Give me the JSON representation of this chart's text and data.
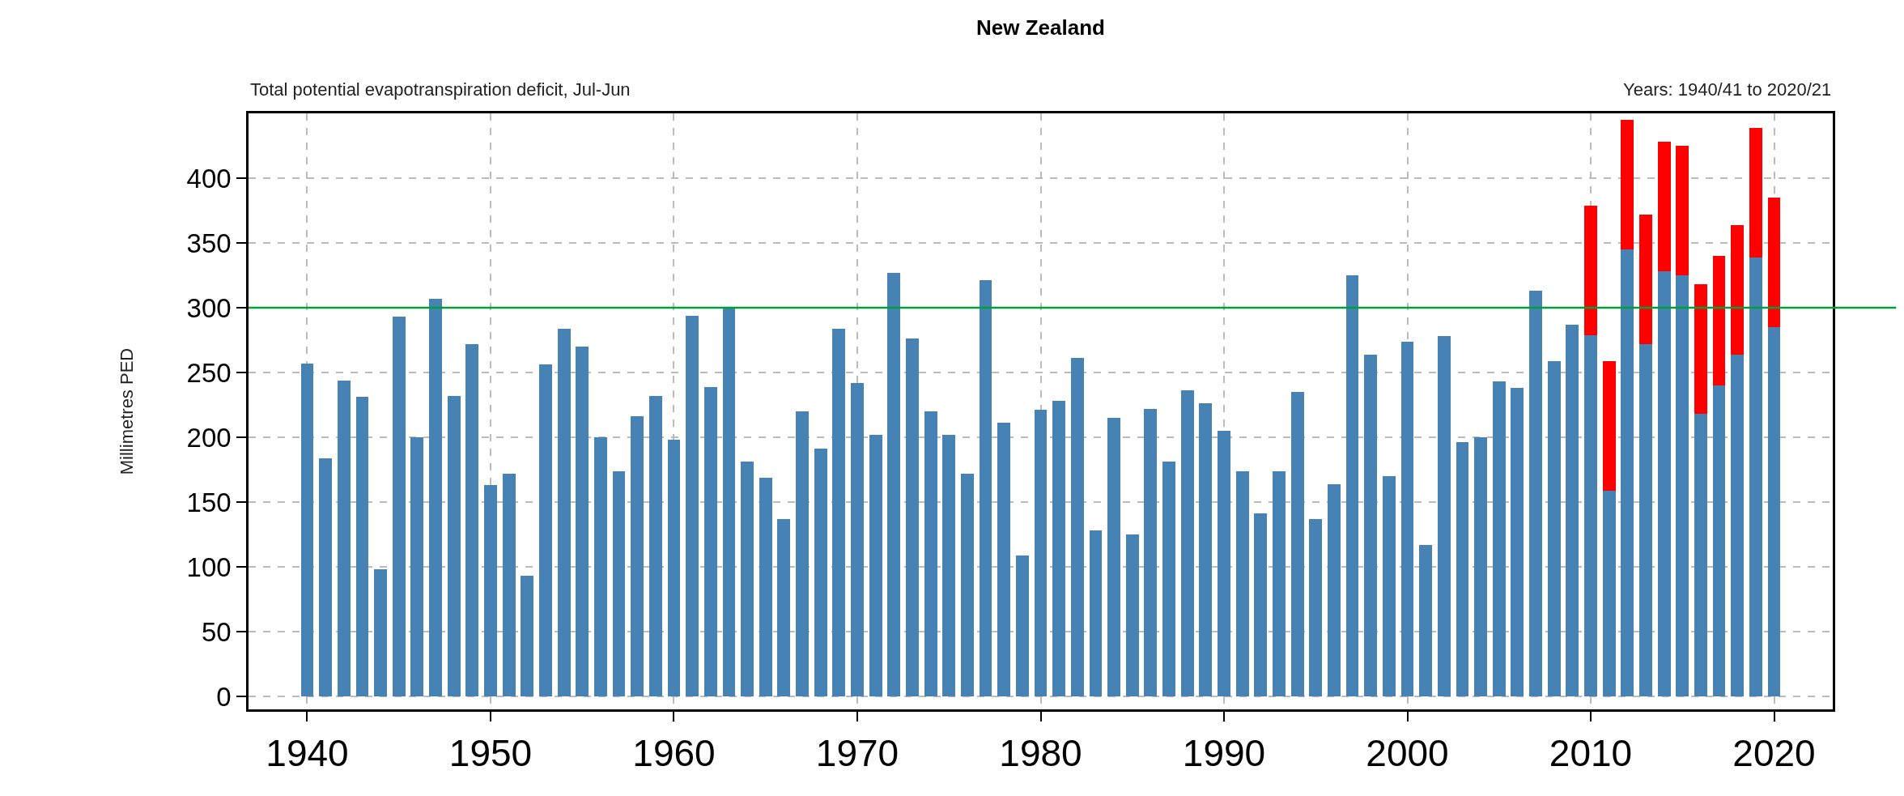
{
  "chart_data": {
    "type": "bar",
    "title": "New Zealand",
    "subtitle": "Total potential evapotranspiration deficit, Jul-Jun",
    "annotations": [
      "Years: 1940/41 to 2020/21"
    ],
    "ylabel": "Millimetres PED",
    "x": [
      1940,
      1941,
      1942,
      1943,
      1944,
      1945,
      1946,
      1947,
      1948,
      1949,
      1950,
      1951,
      1952,
      1953,
      1954,
      1955,
      1956,
      1957,
      1958,
      1959,
      1960,
      1961,
      1962,
      1963,
      1964,
      1965,
      1966,
      1967,
      1968,
      1969,
      1970,
      1971,
      1972,
      1973,
      1974,
      1975,
      1976,
      1977,
      1978,
      1979,
      1980,
      1981,
      1982,
      1983,
      1984,
      1985,
      1986,
      1987,
      1988,
      1989,
      1990,
      1991,
      1992,
      1993,
      1994,
      1995,
      1996,
      1997,
      1998,
      1999,
      2000,
      2001,
      2002,
      2003,
      2004,
      2005,
      2006,
      2007,
      2008,
      2009,
      2010,
      2011,
      2012,
      2013,
      2014,
      2015,
      2016,
      2017,
      2018,
      2019,
      2020
    ],
    "series": [
      {
        "color": "#4682b4",
        "values": [
          257,
          184,
          244,
          231,
          98,
          293,
          200,
          307,
          232,
          272,
          163,
          172,
          93,
          256,
          284,
          270,
          200,
          174,
          216,
          232,
          198,
          294,
          239,
          300,
          181,
          169,
          137,
          220,
          191,
          284,
          242,
          202,
          327,
          276,
          220,
          202,
          172,
          321,
          211,
          109,
          221,
          228,
          261,
          128,
          215,
          125,
          222,
          181,
          236,
          226,
          205,
          174,
          141,
          174,
          235,
          137,
          164,
          325,
          264,
          170,
          274,
          117,
          278,
          196,
          200,
          243,
          238,
          313,
          259,
          287,
          279,
          159,
          345,
          272,
          328,
          325,
          218,
          240,
          264,
          339,
          285
        ]
      },
      {
        "color": "#ff0000",
        "values": [
          null,
          null,
          null,
          null,
          null,
          null,
          null,
          null,
          null,
          null,
          null,
          null,
          null,
          null,
          null,
          null,
          null,
          null,
          null,
          null,
          null,
          null,
          null,
          null,
          null,
          null,
          null,
          null,
          null,
          null,
          null,
          null,
          null,
          null,
          null,
          null,
          null,
          null,
          null,
          null,
          null,
          null,
          null,
          null,
          null,
          null,
          null,
          null,
          null,
          null,
          null,
          null,
          null,
          null,
          null,
          null,
          null,
          null,
          null,
          null,
          null,
          null,
          null,
          null,
          null,
          null,
          null,
          null,
          null,
          null,
          100,
          100,
          100,
          100,
          100,
          100,
          100,
          100,
          100,
          100,
          100
        ]
      }
    ],
    "stacked": true,
    "xlim": [
      1936.8,
      2023.2
    ],
    "xticks": [
      1940,
      1950,
      1960,
      1970,
      1980,
      1990,
      2000,
      2010,
      2020
    ],
    "ylim": [
      -10,
      450
    ],
    "yticks": [
      0,
      50,
      100,
      150,
      200,
      250,
      300,
      350,
      400
    ],
    "grid": true,
    "ref_lines": [
      {
        "axis": "y",
        "value": 300,
        "color": "#009e3c"
      }
    ]
  }
}
